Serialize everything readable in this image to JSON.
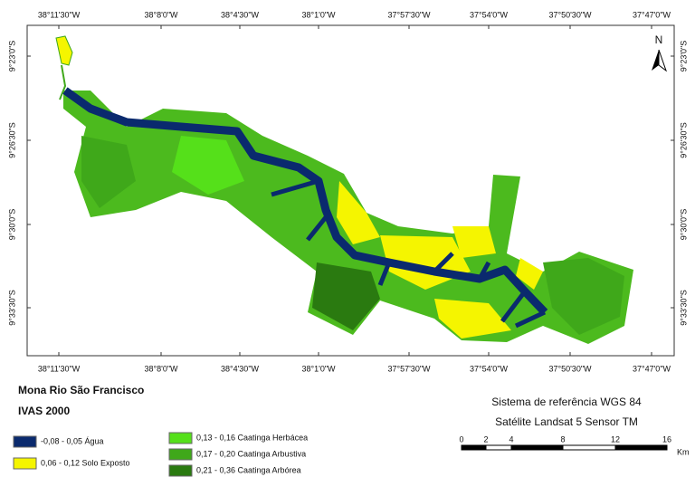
{
  "map": {
    "lon_labels": [
      "38°11'30\"W",
      "38°8'0\"W",
      "38°4'30\"W",
      "38°1'0\"W",
      "37°57'30\"W",
      "37°54'0\"W",
      "37°50'30\"W",
      "37°47'0\"W"
    ],
    "lat_labels": [
      "9°23'0\"S",
      "9°26'30\"S",
      "9°30'0\"S",
      "9°33'30\"S"
    ],
    "north": "N"
  },
  "title": "Mona Rio São Francisco",
  "subtitle": "IVAS 2000",
  "legend": [
    {
      "label": "-0,08 - 0,05 Água",
      "color": "#0a2a6e"
    },
    {
      "label": "0,06 - 0,12 Solo Exposto",
      "color": "#f5f500"
    },
    {
      "label": "0,13 - 0,16 Caatinga Herbácea",
      "color": "#55e01a"
    },
    {
      "label": "0,17 - 0,20 Caatinga Arbustiva",
      "color": "#3fa81a"
    },
    {
      "label": "0,21 - 0,36 Caatinga Arbórea",
      "color": "#2a7a10"
    }
  ],
  "reference": [
    "Sistema de referência WGS 84",
    "Satélite Landsat 5 Sensor TM"
  ],
  "scale": {
    "labels": [
      "0",
      "2",
      "4",
      "8",
      "12",
      "16"
    ],
    "unit": "Km"
  }
}
